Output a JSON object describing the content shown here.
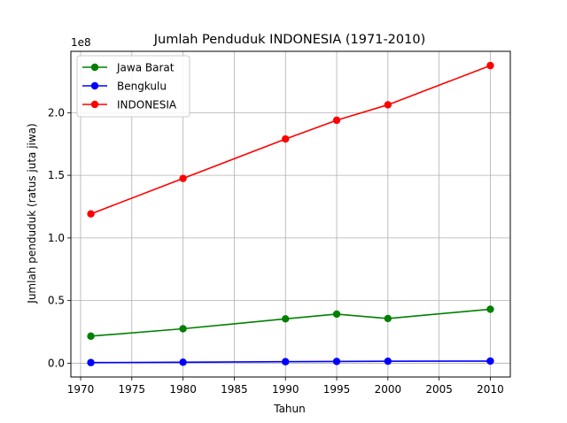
{
  "chart_data": {
    "type": "line",
    "title": "Jumlah Penduduk INDONESIA (1971-2010)",
    "xlabel": "Tahun",
    "ylabel": "Jumlah penduduk (ratus juta jiwa)",
    "y_offset_label": "1e8",
    "xlim": [
      1969.05,
      2011.95
    ],
    "ylim": [
      -11000000,
      249000000
    ],
    "x_ticks": [
      1970,
      1975,
      1980,
      1985,
      1990,
      1995,
      2000,
      2005,
      2010
    ],
    "y_ticks": [
      0,
      50000000,
      100000000,
      150000000,
      200000000
    ],
    "y_tick_labels": [
      "0.0",
      "0.5",
      "1.0",
      "1.5",
      "2.0"
    ],
    "grid": true,
    "legend_position": "top-left",
    "x": [
      1971,
      1980,
      1990,
      1995,
      2000,
      2010
    ],
    "series": [
      {
        "name": "Jawa Barat",
        "color": "#008000",
        "values": [
          21600000,
          27500000,
          35400000,
          39200000,
          35700000,
          43100000
        ]
      },
      {
        "name": "Bengkulu",
        "color": "#0000ff",
        "values": [
          500000,
          800000,
          1200000,
          1400000,
          1600000,
          1700000
        ]
      },
      {
        "name": "INDONESIA",
        "color": "#ff0000",
        "values": [
          119200000,
          147500000,
          179000000,
          194000000,
          206300000,
          237600000
        ]
      }
    ]
  }
}
